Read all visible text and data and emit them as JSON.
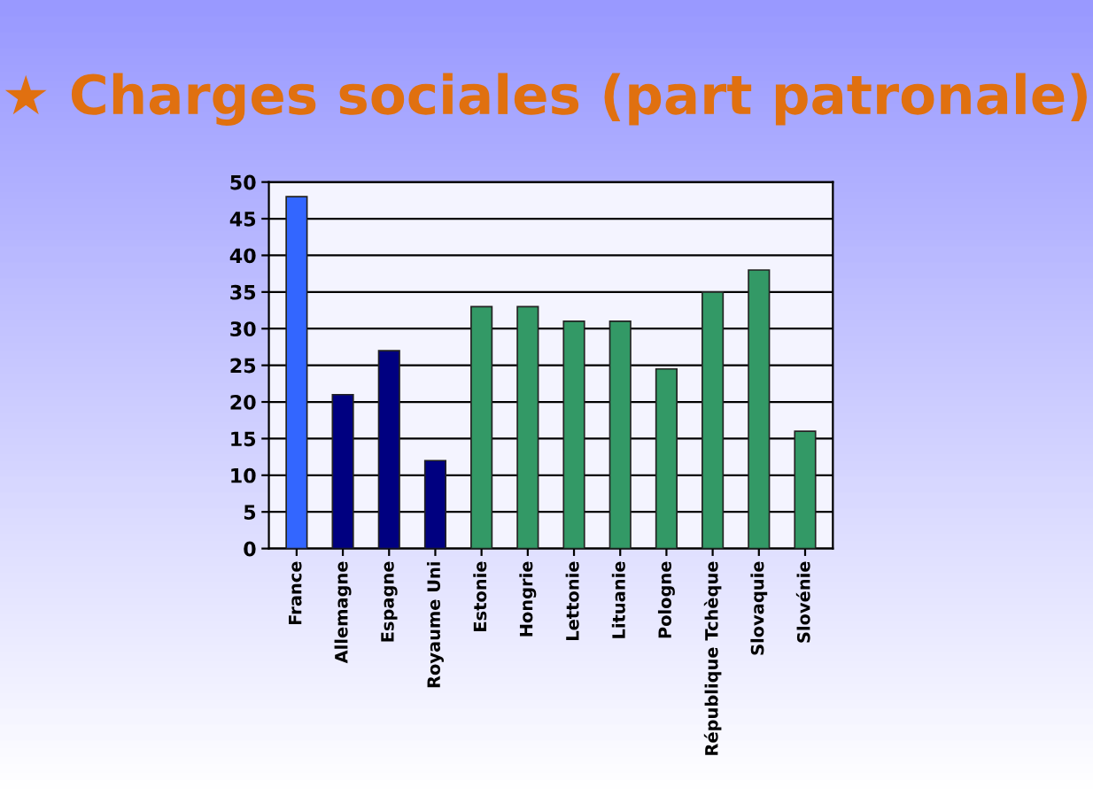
{
  "chart_data": {
    "type": "bar",
    "title": "★ Charges sociales (part patronale)",
    "categories": [
      "France",
      "Allemagne",
      "Espagne",
      "Royaume Uni",
      "Estonie",
      "Hongrie",
      "Lettonie",
      "Lituanie",
      "Pologne",
      "République Tchèque",
      "Slovaquie",
      "Slovénie"
    ],
    "values": [
      48,
      21,
      27,
      12,
      33,
      33,
      31,
      31,
      24.5,
      35,
      38,
      16
    ],
    "colors": [
      "#3366ff",
      "#000080",
      "#000080",
      "#000080",
      "#339966",
      "#339966",
      "#339966",
      "#339966",
      "#339966",
      "#339966",
      "#339966",
      "#339966"
    ],
    "ylim": [
      0,
      50
    ],
    "yticks": [
      0,
      5,
      10,
      15,
      20,
      25,
      30,
      35,
      40,
      45,
      50
    ],
    "grid": "y"
  }
}
